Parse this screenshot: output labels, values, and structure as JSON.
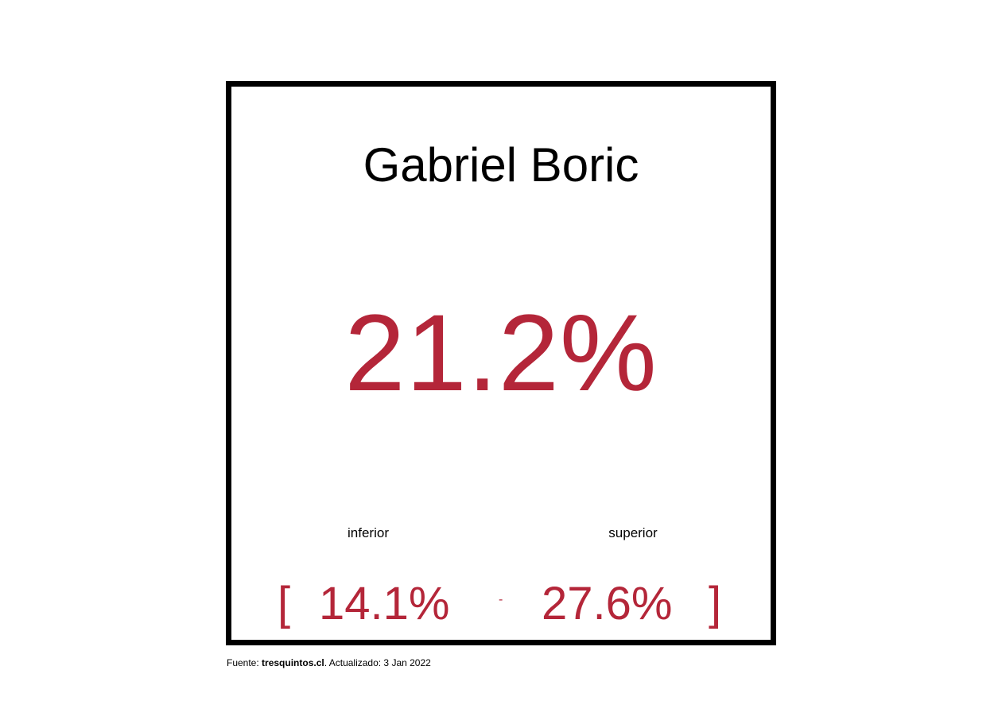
{
  "card": {
    "name": "Gabriel Boric",
    "value": "21.2%",
    "lower_label": "inferior",
    "upper_label": "superior",
    "bracket_open": "[",
    "lower_value": "14.1%",
    "separator": "-",
    "upper_value": "27.6%",
    "bracket_close": "]"
  },
  "footer": {
    "prefix": "Fuente: ",
    "source": "tresquintos.cl",
    "suffix": ". Actualizado: 3 Jan 2022"
  },
  "colors": {
    "accent": "#b42639",
    "border": "#000000",
    "background": "#ffffff"
  }
}
